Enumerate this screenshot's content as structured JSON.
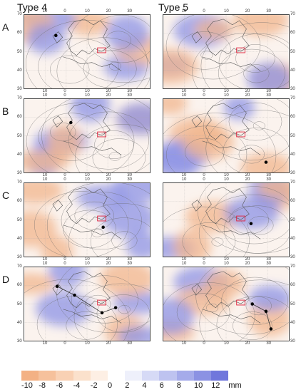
{
  "column_titles": [
    "Type 4",
    "Type 5"
  ],
  "row_labels": [
    "A",
    "B",
    "C",
    "D"
  ],
  "lon_ticks": [
    "20",
    "10",
    "0",
    "10",
    "20",
    "30",
    "40"
  ],
  "lat_ticks": [
    "70",
    "60",
    "50",
    "40",
    "30"
  ],
  "colorbar": {
    "labels": [
      "-10",
      "-8",
      "-6",
      "-4",
      "-2",
      "0",
      "2",
      "4",
      "6",
      "8",
      "10",
      "12"
    ],
    "unit": "mm",
    "colors": [
      "#f3b184",
      "#f6c19c",
      "#f9d1b4",
      "#fbe1cc",
      "#fdefe4",
      "#ffffff",
      "#eef0fb",
      "#d6daf6",
      "#bec3f0",
      "#a5abea",
      "#8b92e3",
      "#7077dc"
    ]
  },
  "panels": [
    {
      "row": "A",
      "type": "Type 4",
      "markers": [
        [
          0.25,
          0.28
        ]
      ],
      "track": false
    },
    {
      "row": "A",
      "type": "Type 5",
      "markers": [],
      "track": false
    },
    {
      "row": "B",
      "type": "Type 4",
      "markers": [
        [
          0.37,
          0.32
        ]
      ],
      "track": false
    },
    {
      "row": "B",
      "type": "Type 5",
      "markers": [
        [
          0.82,
          0.86
        ]
      ],
      "track": false
    },
    {
      "row": "C",
      "type": "Type 4",
      "markers": [
        [
          0.63,
          0.6
        ]
      ],
      "track": false
    },
    {
      "row": "C",
      "type": "Type 5",
      "markers": [
        [
          0.7,
          0.55
        ]
      ],
      "track": false
    },
    {
      "row": "D",
      "type": "Type 4",
      "markers": [
        [
          0.26,
          0.26
        ],
        [
          0.4,
          0.38
        ],
        [
          0.62,
          0.62
        ],
        [
          0.73,
          0.55
        ]
      ],
      "track": true
    },
    {
      "row": "D",
      "type": "Type 5",
      "markers": [
        [
          0.71,
          0.5
        ],
        [
          0.82,
          0.6
        ],
        [
          0.86,
          0.84
        ]
      ],
      "track": true
    }
  ]
}
